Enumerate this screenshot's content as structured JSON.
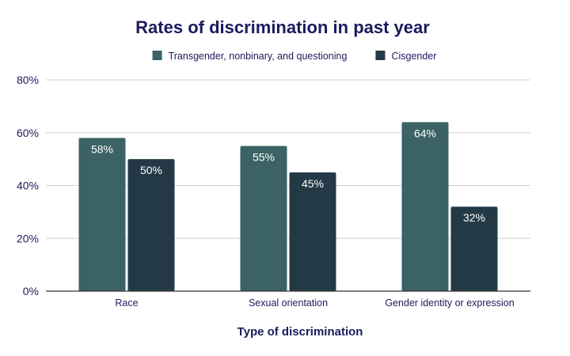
{
  "chart_data": {
    "type": "bar",
    "title": "Rates of discrimination in past year",
    "xlabel": "Type of discrimination",
    "ylabel": "",
    "categories": [
      "Race",
      "Sexual orientation",
      "Gender identity or expression"
    ],
    "series": [
      {
        "name": "Transgender, nonbinary, and questioning",
        "values": [
          58,
          55,
          64
        ],
        "labels": [
          "58%",
          "55%",
          "64%"
        ],
        "color": "#3b6366"
      },
      {
        "name": "Cisgender",
        "values": [
          50,
          45,
          32
        ],
        "labels": [
          "50%",
          "45%",
          "32%"
        ],
        "color": "#233a46"
      }
    ],
    "ylim": [
      0,
      80
    ],
    "yticks": [
      0,
      20,
      40,
      60,
      80
    ],
    "ytick_labels": [
      "0%",
      "20%",
      "40%",
      "60%",
      "80%"
    ],
    "grid": true,
    "legend_position": "top"
  }
}
